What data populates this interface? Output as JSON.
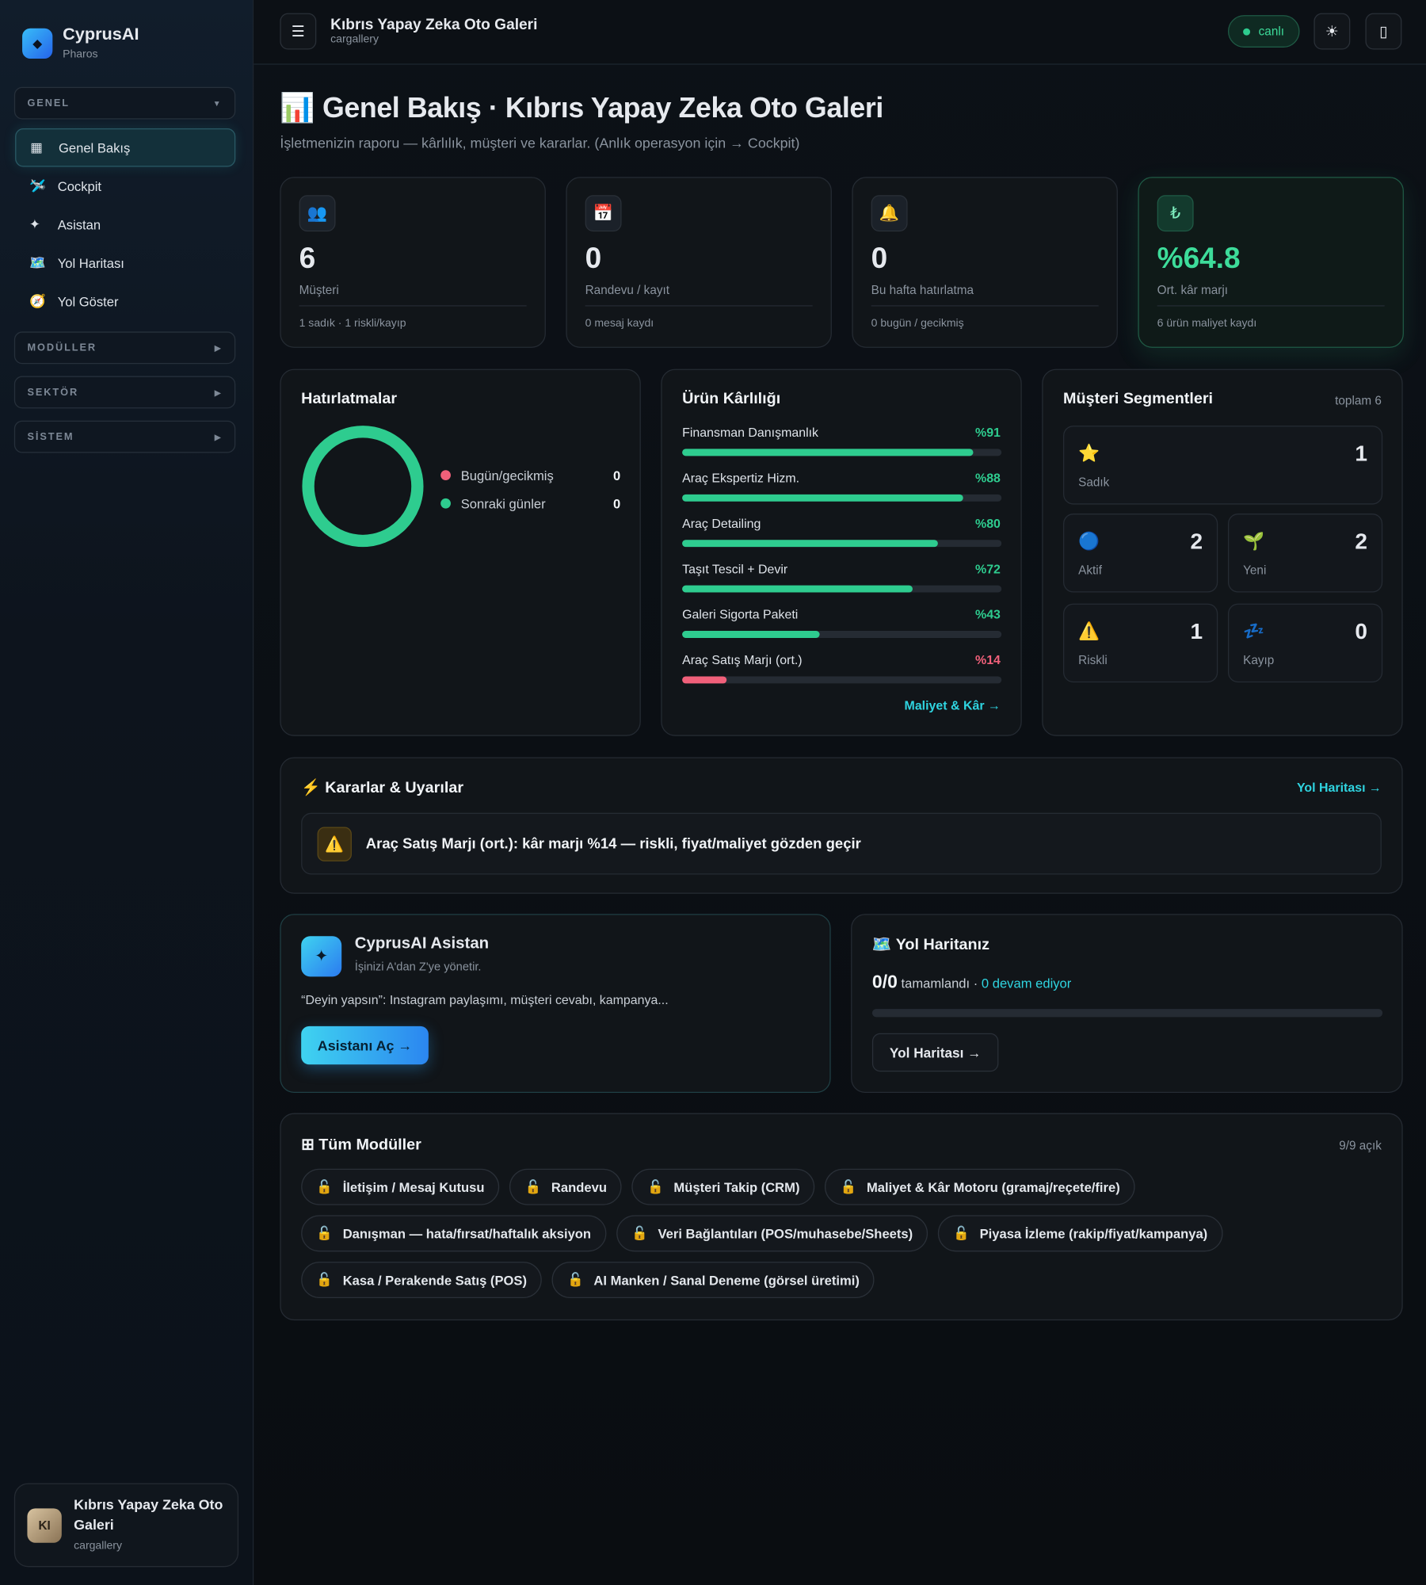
{
  "sidebar": {
    "brand": "CyprusAI",
    "brand_sub": "Pharos",
    "sections": [
      {
        "label": "GENEL",
        "items": [
          "Genel Bakış",
          "Cockpit",
          "Asistan",
          "Yol Haritası",
          "Yol Göster"
        ]
      },
      {
        "label": "MODÜLLER"
      },
      {
        "label": "SEKTÖR"
      },
      {
        "label": "SİSTEM"
      }
    ],
    "account": {
      "initials": "KI",
      "name": "Kıbrıs Yapay Zeka Oto Galeri",
      "handle": "cargallery"
    }
  },
  "topbar": {
    "title": "Kıbrıs Yapay Zeka Oto Galeri",
    "subtitle": "cargallery",
    "status": "canlı"
  },
  "header": {
    "title": "Genel Bakış · Kıbrıs Yapay Zeka Oto Galeri",
    "subtitle": "İşletmenizin raporu — kârlılık, müşteri ve kararlar. (Anlık operasyon için → Cockpit)"
  },
  "stats": [
    {
      "value": "6",
      "label": "Müşteri",
      "note": "1 sadık · 1 riskli/kayıp"
    },
    {
      "value": "0",
      "label": "Randevu / kayıt",
      "note": "0 mesaj kaydı"
    },
    {
      "value": "0",
      "label": "Bu hafta hatırlatma",
      "note": "0 bugün / gecikmiş"
    },
    {
      "value": "%64.8",
      "label": "Ort. kâr marjı",
      "note": "6 ürün maliyet kaydı"
    }
  ],
  "reminders": {
    "title": "Hatırlatmalar",
    "items": [
      {
        "label": "Bugün/gecikmiş",
        "value": 0,
        "color": "#f0607a"
      },
      {
        "label": "Sonraki günler",
        "value": 0,
        "color": "#2ecc8f"
      }
    ]
  },
  "profitability": {
    "title": "Ürün Kârlılığı",
    "link": "Maliyet & Kâr →",
    "max": 100,
    "items": [
      {
        "name": "Finansman Danışmanlık",
        "value": 91,
        "label": "%91",
        "color": "#2ecc8f"
      },
      {
        "name": "Araç Ekspertiz Hizm.",
        "value": 88,
        "label": "%88",
        "color": "#2ecc8f"
      },
      {
        "name": "Araç Detailing",
        "value": 80,
        "label": "%80",
        "color": "#2ecc8f"
      },
      {
        "name": "Taşıt Tescil + Devir",
        "value": 72,
        "label": "%72",
        "color": "#2ecc8f"
      },
      {
        "name": "Galeri Sigorta Paketi",
        "value": 43,
        "label": "%43",
        "color": "#2ecc8f"
      },
      {
        "name": "Araç Satış Marjı (ort.)",
        "value": 14,
        "label": "%14",
        "color": "#f0607a"
      }
    ]
  },
  "segments": {
    "title": "Müşteri Segmentleri",
    "total": "toplam 6",
    "items": [
      {
        "label": "Sadık",
        "value": 1
      },
      {
        "label": "Aktif",
        "value": 2
      },
      {
        "label": "Yeni",
        "value": 2
      },
      {
        "label": "Riskli",
        "value": 1
      },
      {
        "label": "Kayıp",
        "value": 0
      }
    ]
  },
  "decisions": {
    "title": "Kararlar & Uyarılar",
    "link": "Yol Haritası →",
    "alerts": [
      "Araç Satış Marjı (ort.): kâr marjı %14 — riskli, fiyat/maliyet gözden geçir"
    ]
  },
  "assistant": {
    "title": "CyprusAI Asistan",
    "subtitle": "İşinizi A'dan Z'ye yönetir.",
    "text": "“Deyin yapsın”: Instagram paylaşımı, müşteri cevabı, kampanya...",
    "button": "Asistanı Aç →"
  },
  "roadmap": {
    "title": "Yol Haritanız",
    "progress": "0/0",
    "done_label": "tamamlandı ·",
    "in_progress": "0 devam ediyor",
    "button": "Yol Haritası →"
  },
  "modules": {
    "title": "Tüm Modüller",
    "count": "9/9 açık",
    "items": [
      "İletişim / Mesaj Kutusu",
      "Randevu",
      "Müşteri Takip (CRM)",
      "Maliyet & Kâr Motoru (gramaj/reçete/fire)",
      "Danışman — hata/fırsat/haftalık aksiyon",
      "Veri Bağlantıları (POS/muhasebe/Sheets)",
      "Piyasa İzleme (rakip/fiyat/kampanya)",
      "Kasa / Perakende Satış (POS)",
      "AI Manken / Sanal Deneme (görsel üretimi)"
    ]
  }
}
